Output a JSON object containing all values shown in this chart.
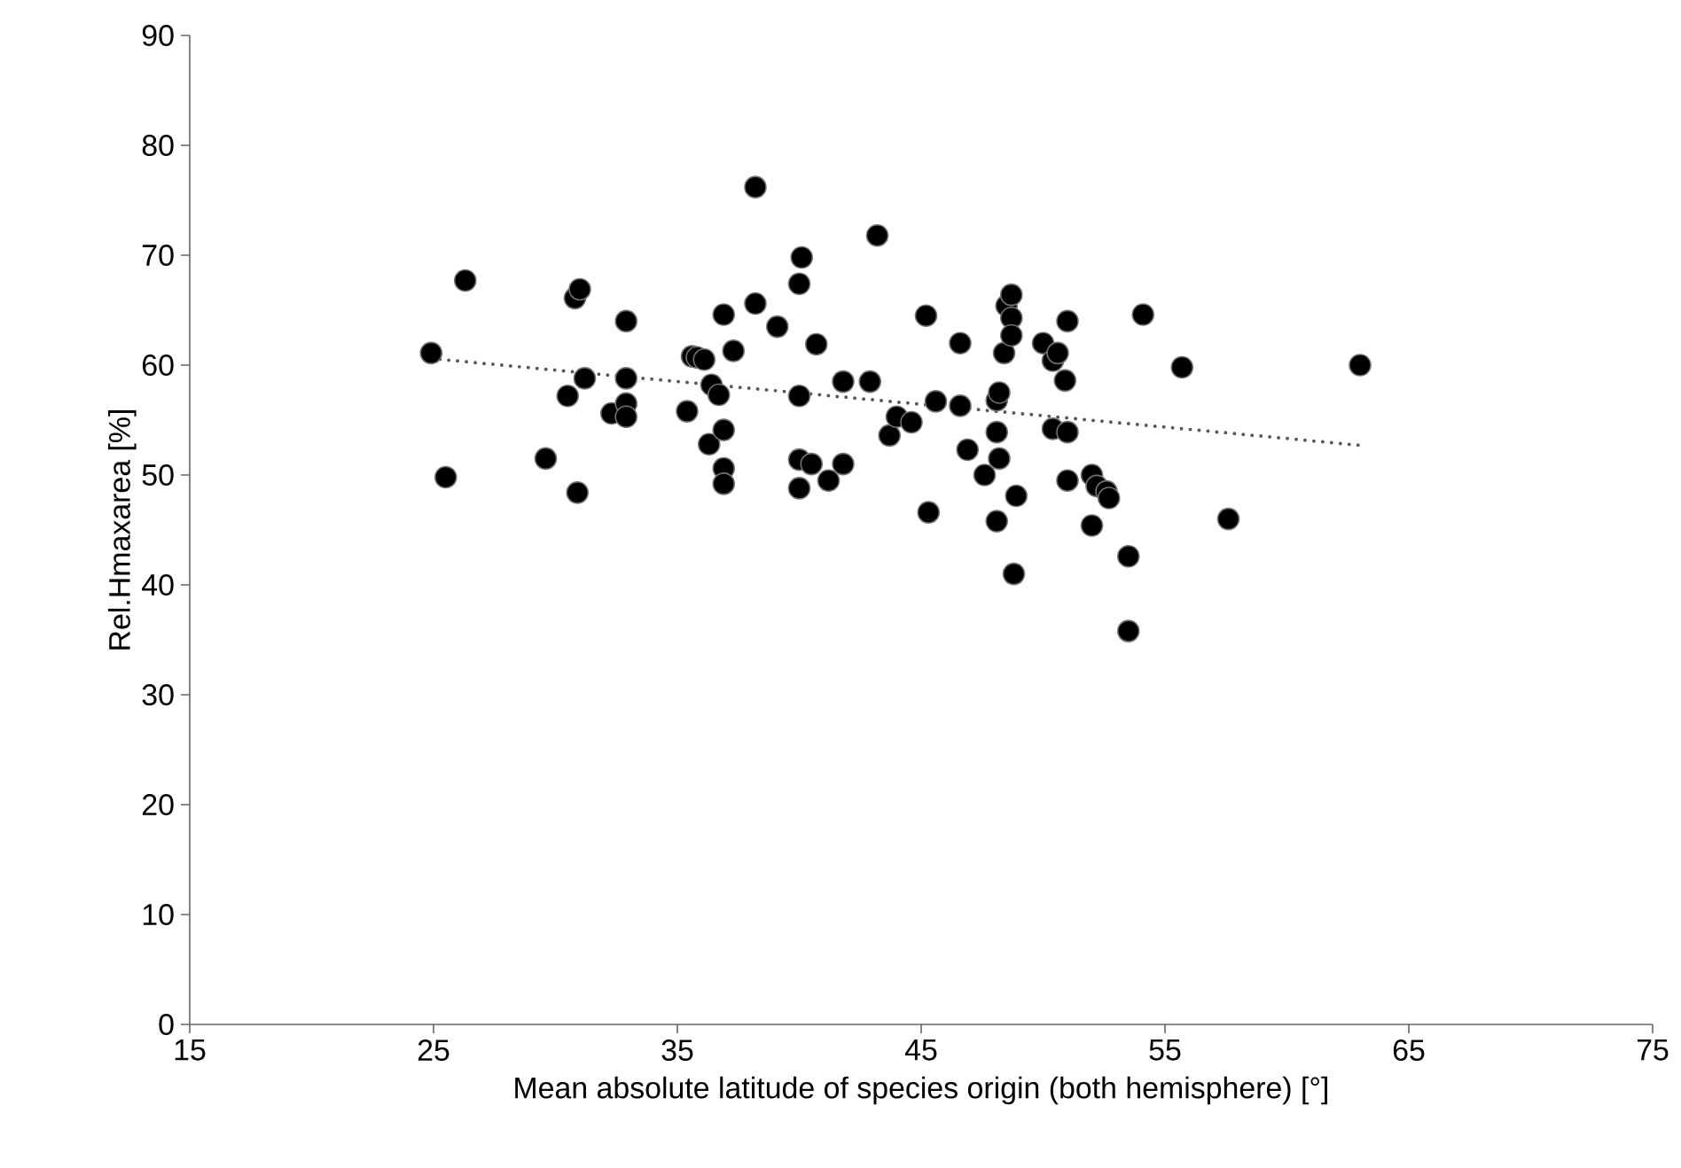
{
  "chart_data": {
    "type": "scatter",
    "xlabel": "Mean absolute latitude of species origin (both hemisphere) [°]",
    "ylabel": "Rel.Hmaxarea [%]",
    "xlim": [
      15,
      75
    ],
    "xticks": [
      15,
      25,
      35,
      45,
      55,
      65,
      75
    ],
    "ylim": [
      0,
      90
    ],
    "yticks": [
      0,
      10,
      20,
      30,
      40,
      50,
      60,
      70,
      80,
      90
    ],
    "marker": "circle",
    "series": [
      {
        "color": "#000000",
        "x": [
          24.9,
          25.5,
          26.3,
          29.6,
          30.5,
          30.8,
          31,
          30.9,
          31.2,
          32.3,
          32.9,
          32.9,
          32.9,
          32.9,
          35.4,
          35.6,
          35.8,
          36.1,
          36.3,
          36.4,
          36.7,
          36.9,
          36.9,
          36.9,
          36.9,
          37.3,
          38.2,
          38.2,
          39.1,
          40,
          40.1,
          40,
          40,
          40,
          40.5,
          40.7,
          41.2,
          41.8,
          41.8,
          42.9,
          43.2,
          43.7,
          44,
          44.6,
          45.2,
          45.3,
          45.6,
          46.6,
          46.6,
          46.9,
          47.6,
          48.1,
          48.1,
          48.1,
          48.2,
          48.2,
          48.4,
          48.5,
          48.7,
          48.7,
          48.7,
          48.9,
          48.8,
          50,
          50.4,
          50.6,
          50.4,
          50.9,
          51,
          51,
          51,
          52,
          52,
          52.2,
          52.6,
          52.7,
          53.5,
          53.5,
          54.1,
          55.7,
          57.6,
          63
        ],
        "values": [
          61.1,
          49.8,
          67.7,
          51.5,
          57.2,
          66.1,
          66.9,
          48.4,
          58.8,
          55.6,
          64,
          58.8,
          56.5,
          55.3,
          55.8,
          60.8,
          60.7,
          60.5,
          52.8,
          58.2,
          57.3,
          64.6,
          54.1,
          50.6,
          49.2,
          61.3,
          76.2,
          65.6,
          63.5,
          57.2,
          69.8,
          67.4,
          51.4,
          48.8,
          51,
          61.9,
          49.5,
          58.5,
          51,
          58.5,
          71.8,
          53.6,
          55.3,
          54.8,
          64.5,
          46.6,
          56.7,
          62,
          56.3,
          52.3,
          50,
          45.8,
          53.9,
          56.8,
          57.5,
          51.5,
          61.1,
          65.4,
          66.4,
          64.3,
          62.7,
          48.1,
          41,
          62,
          60.4,
          61.1,
          54.2,
          58.6,
          49.5,
          64,
          53.9,
          50,
          45.4,
          49,
          48.5,
          47.9,
          42.6,
          35.8,
          64.6,
          59.8,
          46,
          60
        ]
      },
      {
        "type": "line",
        "color": "#595959",
        "line_style": "dotted",
        "marker": "none",
        "x": [
          24.9,
          63
        ],
        "values": [
          60.6,
          52.7
        ]
      }
    ]
  }
}
